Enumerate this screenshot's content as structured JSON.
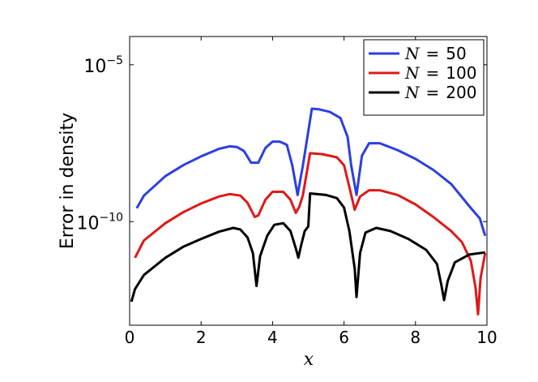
{
  "chart_data": {
    "type": "line",
    "xlabel": "x",
    "ylabel": "Error in density",
    "xlim": [
      0,
      10
    ],
    "ylog": true,
    "ylim_exp": [
      -13.3,
      -4.1
    ],
    "xticks": [
      0,
      2,
      4,
      6,
      8,
      10
    ],
    "xtick_labels": [
      "0",
      "2",
      "4",
      "6",
      "8",
      "10"
    ],
    "yticks_exp": [
      -10,
      -5
    ],
    "ytick_labels": [
      {
        "base": "10",
        "exp": "−10"
      },
      {
        "base": "10",
        "exp": "−5"
      }
    ],
    "legend_position": "top-right",
    "grid": false,
    "series": [
      {
        "name_var": "N",
        "name_eq": "=",
        "name_val": "50",
        "color": "#2b3fe0",
        "points": [
          [
            0.2,
            -9.57
          ],
          [
            0.4,
            -9.17
          ],
          [
            1,
            -8.55
          ],
          [
            1.5,
            -8.2
          ],
          [
            2,
            -7.92
          ],
          [
            2.5,
            -7.68
          ],
          [
            2.8,
            -7.6
          ],
          [
            3,
            -7.62
          ],
          [
            3.2,
            -7.75
          ],
          [
            3.4,
            -8.12
          ],
          [
            3.6,
            -8.12
          ],
          [
            3.8,
            -7.65
          ],
          [
            4.0,
            -7.45
          ],
          [
            4.2,
            -7.45
          ],
          [
            4.4,
            -7.55
          ],
          [
            4.55,
            -8.2
          ],
          [
            4.7,
            -9.15
          ],
          [
            4.85,
            -8.2
          ],
          [
            5.1,
            -6.4
          ],
          [
            5.3,
            -6.42
          ],
          [
            5.6,
            -6.5
          ],
          [
            5.9,
            -6.7
          ],
          [
            6.1,
            -7.3
          ],
          [
            6.2,
            -8.2
          ],
          [
            6.35,
            -9.15
          ],
          [
            6.5,
            -7.9
          ],
          [
            6.7,
            -7.5
          ],
          [
            7,
            -7.5
          ],
          [
            7.5,
            -7.72
          ],
          [
            8,
            -8.0
          ],
          [
            8.5,
            -8.35
          ],
          [
            9,
            -8.8
          ],
          [
            9.5,
            -9.5
          ],
          [
            9.8,
            -9.9
          ],
          [
            9.95,
            -10.45
          ]
        ]
      },
      {
        "name_var": "N",
        "name_eq": "=",
        "name_val": "100",
        "color": "#e01818",
        "points": [
          [
            0.15,
            -11.15
          ],
          [
            0.4,
            -10.6
          ],
          [
            1,
            -10.05
          ],
          [
            1.5,
            -9.7
          ],
          [
            2,
            -9.42
          ],
          [
            2.5,
            -9.2
          ],
          [
            2.8,
            -9.12
          ],
          [
            3.1,
            -9.17
          ],
          [
            3.3,
            -9.4
          ],
          [
            3.5,
            -9.85
          ],
          [
            3.6,
            -9.8
          ],
          [
            3.8,
            -9.3
          ],
          [
            4.0,
            -9.05
          ],
          [
            4.3,
            -9.05
          ],
          [
            4.5,
            -9.3
          ],
          [
            4.65,
            -9.72
          ],
          [
            4.75,
            -9.52
          ],
          [
            4.85,
            -9.15
          ],
          [
            5.05,
            -7.82
          ],
          [
            5.4,
            -7.85
          ],
          [
            5.8,
            -7.95
          ],
          [
            6.0,
            -8.2
          ],
          [
            6.15,
            -8.9
          ],
          [
            6.3,
            -9.62
          ],
          [
            6.45,
            -9.2
          ],
          [
            6.7,
            -9.0
          ],
          [
            7,
            -9.0
          ],
          [
            7.5,
            -9.15
          ],
          [
            8,
            -9.45
          ],
          [
            8.5,
            -9.85
          ],
          [
            9,
            -10.3
          ],
          [
            9.3,
            -10.65
          ],
          [
            9.55,
            -11.25
          ],
          [
            9.68,
            -12.1
          ],
          [
            9.75,
            -12.95
          ],
          [
            9.82,
            -11.8
          ],
          [
            9.95,
            -11.0
          ]
        ]
      },
      {
        "name_var": "N",
        "name_eq": "=",
        "name_val": "200",
        "color": "#000000",
        "points": [
          [
            0.05,
            -12.55
          ],
          [
            0.15,
            -12.15
          ],
          [
            0.4,
            -11.7
          ],
          [
            1,
            -11.15
          ],
          [
            1.5,
            -10.8
          ],
          [
            2,
            -10.55
          ],
          [
            2.5,
            -10.32
          ],
          [
            2.9,
            -10.2
          ],
          [
            3.1,
            -10.25
          ],
          [
            3.3,
            -10.5
          ],
          [
            3.45,
            -11.0
          ],
          [
            3.55,
            -12.05
          ],
          [
            3.65,
            -11.1
          ],
          [
            3.85,
            -10.45
          ],
          [
            4.05,
            -10.1
          ],
          [
            4.3,
            -10.05
          ],
          [
            4.5,
            -10.3
          ],
          [
            4.65,
            -10.85
          ],
          [
            4.72,
            -11.15
          ],
          [
            4.8,
            -10.75
          ],
          [
            4.9,
            -10.3
          ],
          [
            5.0,
            -10.15
          ],
          [
            5.05,
            -9.1
          ],
          [
            5.5,
            -9.15
          ],
          [
            5.8,
            -9.25
          ],
          [
            6.0,
            -9.55
          ],
          [
            6.15,
            -10.3
          ],
          [
            6.3,
            -11.5
          ],
          [
            6.35,
            -12.4
          ],
          [
            6.45,
            -11.0
          ],
          [
            6.6,
            -10.35
          ],
          [
            6.9,
            -10.2
          ],
          [
            7.3,
            -10.3
          ],
          [
            7.8,
            -10.55
          ],
          [
            8.3,
            -10.9
          ],
          [
            8.6,
            -11.35
          ],
          [
            8.72,
            -12.0
          ],
          [
            8.8,
            -12.5
          ],
          [
            8.9,
            -11.9
          ],
          [
            9.1,
            -11.3
          ],
          [
            9.5,
            -11.05
          ],
          [
            9.95,
            -10.98
          ]
        ]
      }
    ]
  }
}
